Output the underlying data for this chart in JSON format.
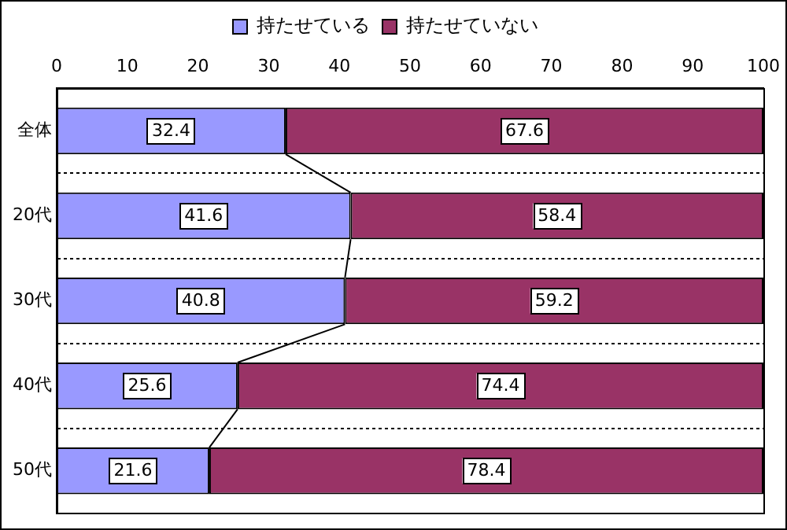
{
  "chart_data": {
    "type": "bar",
    "orientation": "horizontal",
    "stacked": true,
    "categories": [
      "全体",
      "20代",
      "30代",
      "40代",
      "50代"
    ],
    "series": [
      {
        "name": "持たせている",
        "color": "#9999ff",
        "values": [
          32.4,
          41.6,
          40.8,
          25.6,
          21.6
        ]
      },
      {
        "name": "持たせていない",
        "color": "#993366",
        "values": [
          67.6,
          58.4,
          59.2,
          74.4,
          78.4
        ]
      }
    ],
    "xlim": [
      0,
      100
    ],
    "xticks": [
      0,
      10,
      20,
      30,
      40,
      50,
      60,
      70,
      80,
      90,
      100
    ],
    "grid": "y",
    "legend": "top",
    "data_labels": true
  }
}
